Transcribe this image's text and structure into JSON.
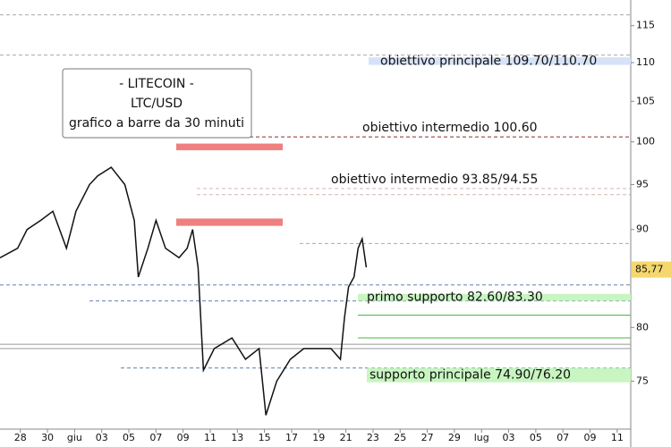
{
  "chart_data": {
    "type": "line",
    "log_scale": true,
    "info_box": [
      "- LITECOIN -",
      "LTC/USD",
      "grafico a barre da 30 minuti"
    ],
    "x": [
      -1.5,
      -0.2,
      0.5,
      1.5,
      2.4,
      3.4,
      4.1,
      5.1,
      5.7,
      6.7,
      7.7,
      8.4,
      8.7,
      9.4,
      10.0,
      10.7,
      11.7,
      12.3,
      12.7,
      13.1,
      13.5,
      14.3,
      15.6,
      16.6,
      17.6,
      18.1,
      18.9,
      19.9,
      20.9,
      21.9,
      22.9,
      23.6,
      23.9,
      24.2,
      24.6,
      24.9,
      25.2,
      25.5
    ],
    "series": [
      {
        "color": "#111111",
        "values": [
          87,
          88,
          90,
          91,
          92,
          88,
          92,
          95,
          96,
          97,
          95,
          91,
          85,
          88,
          91,
          88,
          87,
          88,
          90,
          86,
          76,
          78,
          79,
          77,
          78,
          72,
          75,
          77,
          78,
          78,
          78,
          77,
          81,
          84,
          85,
          88,
          89,
          86
        ]
      }
    ],
    "xlim": [
      -1.5,
      45
    ],
    "xticks": [
      {
        "value": 0,
        "label": "28"
      },
      {
        "value": 2,
        "label": "30"
      },
      {
        "value": 4,
        "label": "giu"
      },
      {
        "value": 6,
        "label": "03"
      },
      {
        "value": 8,
        "label": "05"
      },
      {
        "value": 10,
        "label": "07"
      },
      {
        "value": 12,
        "label": "09"
      },
      {
        "value": 14,
        "label": "11"
      },
      {
        "value": 16,
        "label": "13"
      },
      {
        "value": 18,
        "label": "15"
      },
      {
        "value": 20,
        "label": "17"
      },
      {
        "value": 22,
        "label": "19"
      },
      {
        "value": 24,
        "label": "21"
      },
      {
        "value": 26,
        "label": "23"
      },
      {
        "value": 28,
        "label": "25"
      },
      {
        "value": 30,
        "label": "27"
      },
      {
        "value": 32,
        "label": "29"
      },
      {
        "value": 34,
        "label": "lug"
      },
      {
        "value": 36,
        "label": "03"
      },
      {
        "value": 38,
        "label": "05"
      },
      {
        "value": 40,
        "label": "07"
      },
      {
        "value": 42,
        "label": "09"
      },
      {
        "value": 44,
        "label": "11"
      }
    ],
    "ylim": [
      70.8,
      118.6
    ],
    "yticks": [
      75,
      80,
      90,
      95,
      100,
      105,
      110,
      115
    ],
    "last_price": {
      "value": 85.77,
      "label": "85,77"
    },
    "annotations": [
      {
        "text": "obiettivo principale 109.70/110.70",
        "low": 109.7,
        "high": 110.7,
        "color": "#d6e2f7"
      },
      {
        "text": "obiettivo intermedio 100.60",
        "value": 100.6,
        "color": "#8b2c2c"
      },
      {
        "text": "obiettivo intermedio 93.85/94.55",
        "low": 93.85,
        "high": 94.55,
        "color": "#c08080"
      },
      {
        "text": "primo supporto 82.60/83.30",
        "low": 82.6,
        "high": 83.3,
        "color": "#c8f5c0"
      },
      {
        "text": "supporto principale 74.90/76.20",
        "low": 74.9,
        "high": 76.2,
        "color": "#c8f5c0"
      }
    ],
    "reference_lines": [
      {
        "value": 116.5,
        "color": "#aaaaaa",
        "dashed": true
      },
      {
        "value": 111,
        "color": "#aaaaaa",
        "dashed": true
      },
      {
        "value": 88.5,
        "color": "#aaaaaa",
        "dashed": true
      },
      {
        "value": 84.2,
        "color": "#6080b0",
        "dashed": true
      },
      {
        "value": 82.6,
        "color": "#6080b0",
        "dashed": true
      },
      {
        "value": 81.2,
        "color": "#44bb44",
        "dashed": false
      },
      {
        "value": 79.0,
        "color": "#44bb44",
        "dashed": false
      },
      {
        "value": 78.4,
        "color": "#999999",
        "dashed": false
      },
      {
        "value": 78.0,
        "color": "#999999",
        "dashed": false
      },
      {
        "value": 76.2,
        "color": "#6080b0",
        "dashed": true
      },
      {
        "value": 75.0,
        "color": "#999999",
        "dashed": false
      }
    ],
    "zones": [
      {
        "low": 99.0,
        "high": 99.8,
        "color": "#f08080"
      },
      {
        "low": 90.4,
        "high": 91.2,
        "color": "#f08080"
      }
    ]
  }
}
